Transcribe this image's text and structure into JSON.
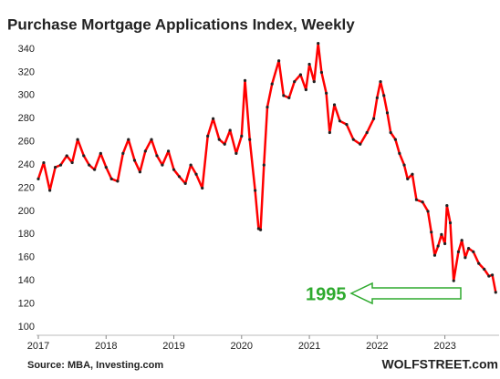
{
  "chart_data": {
    "type": "line",
    "title": "Purchase Mortgage Applications Index, Weekly",
    "source": "Source: MBA, Investing.com",
    "brand": "WOLFSTREET.com",
    "annotation": "1995",
    "xlim": [
      2017,
      2023.8
    ],
    "xticks": [
      2017,
      2018,
      2019,
      2020,
      2021,
      2022,
      2023
    ],
    "ylim": [
      100,
      350
    ],
    "yticks": [
      100,
      120,
      140,
      160,
      180,
      200,
      220,
      240,
      260,
      280,
      300,
      320,
      340
    ],
    "grid": false,
    "series": [
      {
        "name": "Purchase Mortgage Applications Index",
        "color": "#ff0000",
        "x": [
          2017.0,
          2017.08,
          2017.17,
          2017.25,
          2017.33,
          2017.42,
          2017.5,
          2017.58,
          2017.67,
          2017.75,
          2017.83,
          2017.92,
          2018.0,
          2018.08,
          2018.17,
          2018.25,
          2018.33,
          2018.42,
          2018.5,
          2018.58,
          2018.67,
          2018.75,
          2018.83,
          2018.92,
          2019.0,
          2019.08,
          2019.17,
          2019.25,
          2019.33,
          2019.42,
          2019.5,
          2019.58,
          2019.67,
          2019.75,
          2019.83,
          2019.92,
          2020.0,
          2020.05,
          2020.12,
          2020.2,
          2020.25,
          2020.28,
          2020.33,
          2020.38,
          2020.45,
          2020.55,
          2020.62,
          2020.7,
          2020.78,
          2020.87,
          2020.95,
          2021.0,
          2021.07,
          2021.13,
          2021.18,
          2021.25,
          2021.3,
          2021.37,
          2021.45,
          2021.55,
          2021.65,
          2021.75,
          2021.85,
          2021.95,
          2022.0,
          2022.05,
          2022.1,
          2022.15,
          2022.2,
          2022.27,
          2022.33,
          2022.4,
          2022.45,
          2022.52,
          2022.58,
          2022.67,
          2022.75,
          2022.8,
          2022.85,
          2022.9,
          2022.95,
          2023.0,
          2023.03,
          2023.08,
          2023.13,
          2023.2,
          2023.25,
          2023.3,
          2023.35,
          2023.42,
          2023.5,
          2023.58,
          2023.65,
          2023.7,
          2023.75
        ],
        "values": [
          228,
          242,
          218,
          238,
          240,
          248,
          242,
          262,
          248,
          240,
          236,
          250,
          238,
          228,
          226,
          250,
          262,
          244,
          234,
          252,
          262,
          248,
          240,
          252,
          236,
          230,
          224,
          240,
          232,
          220,
          265,
          280,
          262,
          258,
          270,
          250,
          265,
          313,
          262,
          218,
          185,
          184,
          240,
          290,
          310,
          330,
          300,
          298,
          312,
          318,
          305,
          327,
          312,
          345,
          320,
          302,
          268,
          292,
          278,
          275,
          262,
          258,
          268,
          280,
          298,
          312,
          300,
          285,
          268,
          262,
          250,
          240,
          228,
          232,
          210,
          208,
          200,
          182,
          162,
          170,
          180,
          172,
          205,
          190,
          140,
          165,
          175,
          160,
          168,
          165,
          155,
          150,
          144,
          145,
          130
        ]
      }
    ]
  }
}
